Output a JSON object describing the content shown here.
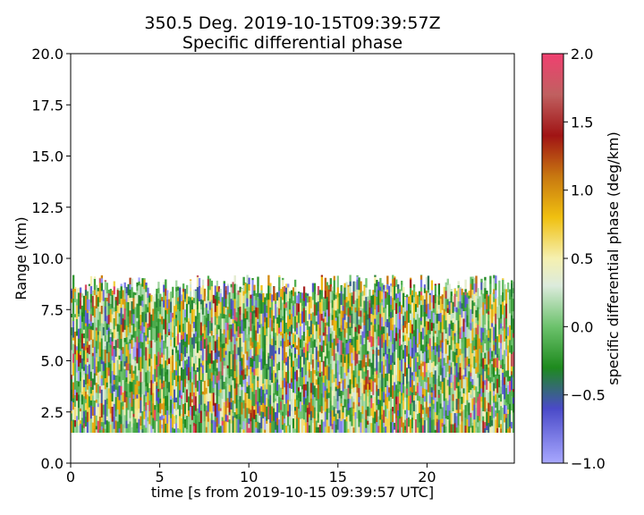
{
  "chart_data": {
    "type": "heatmap",
    "title": [
      "350.5 Deg. 2019-10-15T09:39:57Z",
      "Specific differential phase"
    ],
    "xlabel": "time [s from 2019-10-15 09:39:57 UTC]",
    "ylabel": "Range (km)",
    "xlim": [
      0,
      24.9
    ],
    "ylim": [
      0,
      20
    ],
    "x_ticks": [
      "0",
      "5",
      "10",
      "15",
      "20"
    ],
    "y_ticks": [
      "0.0",
      "2.5",
      "5.0",
      "7.5",
      "10.0",
      "12.5",
      "15.0",
      "17.5",
      "20.0"
    ],
    "data_extent": {
      "time_s": [
        0,
        24.9
      ],
      "range_km": [
        1.5,
        9.2
      ]
    },
    "grid": false,
    "colorbar": {
      "label": "specific differential phase (deg/km)",
      "vmin": -1.0,
      "vmax": 2.0,
      "ticks": [
        "2.0",
        "1.5",
        "1.0",
        "0.5",
        "0.0",
        "−0.5",
        "−1.0"
      ],
      "colors": [
        {
          "value": -1.0,
          "color": "#a8a8ff"
        },
        {
          "value": -0.6,
          "color": "#4a4ac8"
        },
        {
          "value": -0.3,
          "color": "#1e8a1e"
        },
        {
          "value": 0.0,
          "color": "#6cc26c"
        },
        {
          "value": 0.3,
          "color": "#dcebdc"
        },
        {
          "value": 0.5,
          "color": "#f5f0b0"
        },
        {
          "value": 0.8,
          "color": "#f0c010"
        },
        {
          "value": 1.1,
          "color": "#c87810"
        },
        {
          "value": 1.4,
          "color": "#a01414"
        },
        {
          "value": 1.7,
          "color": "#c06060"
        },
        {
          "value": 2.0,
          "color": "#f04070"
        }
      ]
    }
  }
}
